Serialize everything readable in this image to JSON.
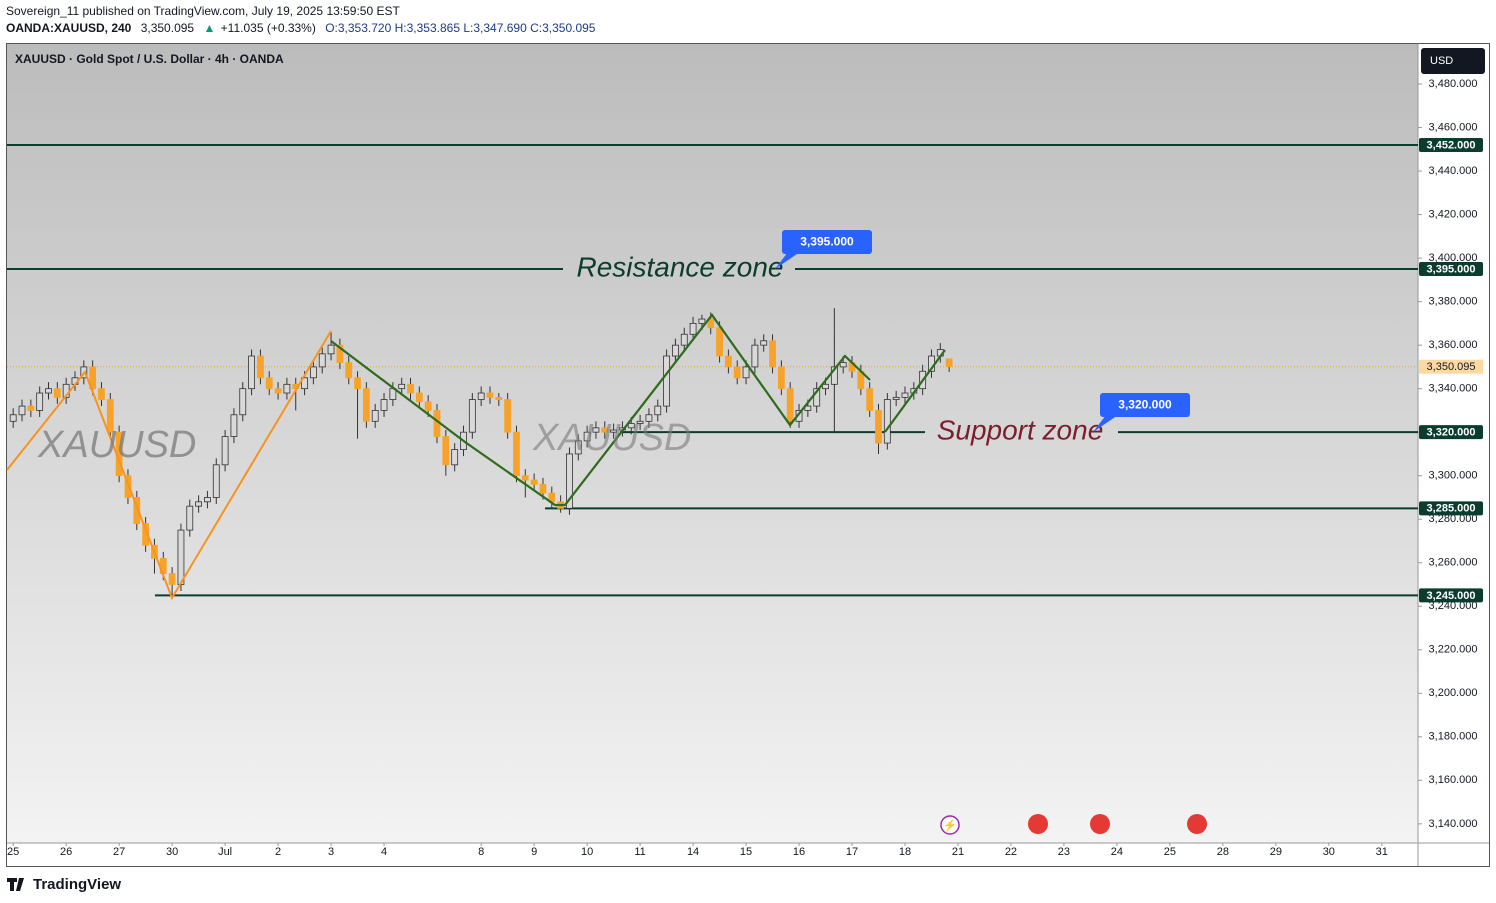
{
  "header": {
    "publisher": "Sovereign_11 published on TradingView.com, July 19, 2025 13:59:50 EST",
    "symbol": "OANDA:XAUUSD, 240",
    "price": "3,350.095",
    "change": "+11.035 (+0.33%)",
    "open": "O:3,353.720",
    "high": "H:3,353.865",
    "low": "L:3,347.690",
    "close": "C:3,350.095"
  },
  "footer": {
    "brand": "TradingView"
  },
  "chart_data": {
    "type": "candlestick",
    "title": "XAUUSD · Gold Spot / U.S. Dollar · 4h · OANDA",
    "currency": "USD",
    "watermark": "XAUUSD",
    "series": [
      {
        "name": "XAUUSD",
        "up_color": "#d9d9d9",
        "down_color": "#f7a32a",
        "edge_color": "#333333",
        "open": [
          3325,
          3328,
          3332,
          3330,
          3338,
          3340,
          3336,
          3342,
          3345,
          3350,
          3340,
          3335,
          3320,
          3300,
          3290,
          3278,
          3268,
          3262,
          3255,
          3250,
          3275,
          3286,
          3288,
          3290,
          3305,
          3318,
          3328,
          3340,
          3355,
          3345,
          3340,
          3338,
          3342,
          3340,
          3345,
          3350,
          3356,
          3360,
          3352,
          3345,
          3340,
          3325,
          3330,
          3335,
          3340,
          3342,
          3338,
          3334,
          3330,
          3318,
          3305,
          3312,
          3320,
          3335,
          3338,
          3336,
          3335,
          3320,
          3300,
          3298,
          3296,
          3292,
          3288,
          3285,
          3310,
          3316,
          3320,
          3322,
          3320,
          3321,
          3322,
          3324,
          3325,
          3328,
          3332,
          3355,
          3360,
          3365,
          3370,
          3372,
          3368,
          3355,
          3350,
          3345,
          3350,
          3360,
          3362,
          3350,
          3340,
          3325,
          3330,
          3332,
          3340,
          3342,
          3350,
          3352,
          3348,
          3340,
          3330,
          3315,
          3335,
          3336,
          3338,
          3340,
          3348,
          3355,
          3353.72
        ],
        "high": [
          3331,
          3335,
          3335,
          3341,
          3343,
          3343,
          3345,
          3348,
          3353,
          3353,
          3343,
          3338,
          3323,
          3303,
          3293,
          3281,
          3271,
          3265,
          3258,
          3278,
          3289,
          3291,
          3293,
          3308,
          3321,
          3331,
          3343,
          3358,
          3358,
          3348,
          3343,
          3345,
          3345,
          3348,
          3353,
          3359,
          3366,
          3363,
          3355,
          3348,
          3343,
          3333,
          3338,
          3343,
          3345,
          3345,
          3341,
          3337,
          3333,
          3321,
          3315,
          3323,
          3338,
          3341,
          3341,
          3338,
          3338,
          3323,
          3303,
          3301,
          3299,
          3295,
          3291,
          3313,
          3319,
          3323,
          3325,
          3325,
          3324,
          3325,
          3327,
          3328,
          3331,
          3335,
          3358,
          3363,
          3368,
          3373,
          3374,
          3375,
          3371,
          3358,
          3353,
          3353,
          3363,
          3365,
          3365,
          3353,
          3343,
          3333,
          3335,
          3343,
          3345,
          3377,
          3355,
          3355,
          3351,
          3343,
          3333,
          3338,
          3339,
          3341,
          3343,
          3351,
          3358,
          3361,
          3353.865
        ],
        "low": [
          3322,
          3325,
          3327,
          3327,
          3335,
          3333,
          3333,
          3339,
          3342,
          3337,
          3332,
          3317,
          3297,
          3287,
          3275,
          3265,
          3255,
          3252,
          3245,
          3247,
          3272,
          3283,
          3285,
          3287,
          3302,
          3315,
          3325,
          3337,
          3342,
          3337,
          3335,
          3335,
          3330,
          3337,
          3342,
          3347,
          3353,
          3349,
          3342,
          3317,
          3322,
          3322,
          3327,
          3332,
          3337,
          3335,
          3331,
          3327,
          3315,
          3300,
          3302,
          3309,
          3317,
          3332,
          3333,
          3332,
          3317,
          3297,
          3290,
          3293,
          3289,
          3285,
          3283,
          3282,
          3307,
          3313,
          3317,
          3317,
          3317,
          3318,
          3319,
          3321,
          3322,
          3325,
          3329,
          3352,
          3357,
          3362,
          3367,
          3365,
          3352,
          3347,
          3342,
          3342,
          3347,
          3357,
          3347,
          3337,
          3322,
          3322,
          3327,
          3329,
          3337,
          3320,
          3347,
          3345,
          3337,
          3327,
          3310,
          3312,
          3332,
          3333,
          3335,
          3337,
          3345,
          3352,
          3347.69
        ],
        "close": [
          3328,
          3332,
          3330,
          3338,
          3340,
          3336,
          3342,
          3345,
          3350,
          3340,
          3335,
          3320,
          3300,
          3290,
          3278,
          3268,
          3262,
          3255,
          3250,
          3275,
          3286,
          3288,
          3290,
          3305,
          3318,
          3328,
          3340,
          3355,
          3345,
          3340,
          3338,
          3342,
          3340,
          3345,
          3350,
          3356,
          3360,
          3352,
          3345,
          3340,
          3325,
          3330,
          3335,
          3340,
          3342,
          3338,
          3334,
          3330,
          3318,
          3305,
          3312,
          3320,
          3335,
          3338,
          3336,
          3335,
          3320,
          3300,
          3298,
          3296,
          3292,
          3288,
          3285,
          3310,
          3316,
          3320,
          3322,
          3320,
          3321,
          3322,
          3324,
          3325,
          3328,
          3332,
          3355,
          3360,
          3365,
          3370,
          3372,
          3368,
          3355,
          3350,
          3345,
          3350,
          3360,
          3362,
          3350,
          3340,
          3325,
          3330,
          3332,
          3340,
          3342,
          3350,
          3352,
          3348,
          3340,
          3330,
          3315,
          3335,
          3336,
          3338,
          3340,
          3348,
          3355,
          3358,
          3350.095
        ]
      }
    ],
    "xlim": [
      -0.7,
      159.1
    ],
    "xticks": [
      {
        "value": 0,
        "label": "25"
      },
      {
        "value": 6,
        "label": "26"
      },
      {
        "value": 12,
        "label": "27"
      },
      {
        "value": 18,
        "label": "30"
      },
      {
        "value": 24,
        "label": "Jul"
      },
      {
        "value": 30,
        "label": "2"
      },
      {
        "value": 36,
        "label": "3"
      },
      {
        "value": 42,
        "label": "4"
      },
      {
        "value": 53,
        "label": "8"
      },
      {
        "value": 59,
        "label": "9"
      },
      {
        "value": 65,
        "label": "10"
      },
      {
        "value": 71,
        "label": "11"
      },
      {
        "value": 77,
        "label": "14"
      },
      {
        "value": 83,
        "label": "15"
      },
      {
        "value": 89,
        "label": "16"
      },
      {
        "value": 95,
        "label": "17"
      },
      {
        "value": 101,
        "label": "18"
      },
      {
        "value": 107,
        "label": "21"
      },
      {
        "value": 113,
        "label": "22"
      },
      {
        "value": 119,
        "label": "23"
      },
      {
        "value": 125,
        "label": "24"
      },
      {
        "value": 131,
        "label": "25"
      },
      {
        "value": 137,
        "label": "28"
      },
      {
        "value": 143,
        "label": "29"
      },
      {
        "value": 149,
        "label": "30"
      },
      {
        "value": 155,
        "label": "31"
      }
    ],
    "ylim": [
      3131.2,
      3498.4
    ],
    "yticks": [
      {
        "value": 3140,
        "label": "3,140.000"
      },
      {
        "value": 3160,
        "label": "3,160.000"
      },
      {
        "value": 3180,
        "label": "3,180.000"
      },
      {
        "value": 3200,
        "label": "3,200.000"
      },
      {
        "value": 3220,
        "label": "3,220.000"
      },
      {
        "value": 3240,
        "label": "3,240.000"
      },
      {
        "value": 3260,
        "label": "3,260.000"
      },
      {
        "value": 3280,
        "label": "3,280.000"
      },
      {
        "value": 3300,
        "label": "3,300.000"
      },
      {
        "value": 3320,
        "label": "3,320.000"
      },
      {
        "value": 3340,
        "label": "3,340.000"
      },
      {
        "value": 3360,
        "label": "3,360.000"
      },
      {
        "value": 3380,
        "label": "3,380.000"
      },
      {
        "value": 3400,
        "label": "3,400.000"
      },
      {
        "value": 3420,
        "label": "3,420.000"
      },
      {
        "value": 3440,
        "label": "3,440.000"
      },
      {
        "value": 3460,
        "label": "3,460.000"
      },
      {
        "value": 3480,
        "label": "3,480.000"
      }
    ],
    "grid": false,
    "levels": [
      {
        "value": 3452,
        "label": "3,452.000"
      },
      {
        "value": 3395,
        "label": "3,395.000"
      },
      {
        "value": 3320,
        "label": "3,320.000"
      },
      {
        "value": 3285,
        "label": "3,285.000"
      },
      {
        "value": 3245,
        "label": "3,245.000"
      }
    ],
    "level_color": "#0b3d2e",
    "last_price": {
      "value": 3350.095,
      "label": "3,350.095",
      "color": "#f7a32a"
    },
    "annotations": [
      {
        "text": "Resistance zone",
        "color": "#0b3d2e"
      },
      {
        "text": "Support zone",
        "color": "#7a1f2b"
      }
    ],
    "callouts": [
      {
        "value": 3395,
        "label": "3,395.000"
      },
      {
        "value": 3320,
        "label": "3,320.000"
      }
    ],
    "callout_color": "#2962ff"
  }
}
